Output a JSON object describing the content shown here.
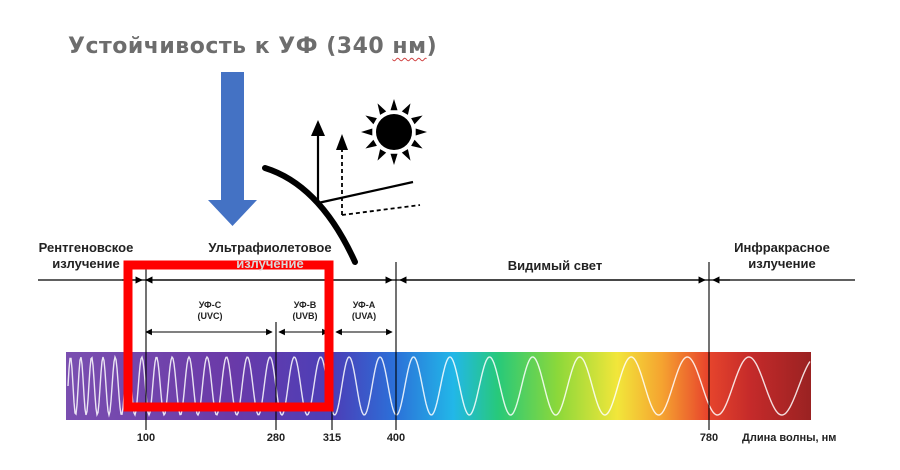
{
  "title_main": "Устойчивость к УФ (340 ",
  "title_unit": "нм",
  "title_end": ")",
  "regions": {
    "xray": [
      "Рентгеновское",
      "излучение"
    ],
    "uv": [
      "Ультрафиолетовое",
      "излучение"
    ],
    "visible": "Видимый свет",
    "ir": [
      "Инфракрасное",
      "излучение"
    ]
  },
  "subbands": {
    "uvc": [
      "УФ-С",
      "(UVC)"
    ],
    "uvb": [
      "УФ-В",
      "(UVB)"
    ],
    "uva": [
      "УФ-А",
      "(UVA)"
    ]
  },
  "ticks": [
    "100",
    "280",
    "315",
    "400",
    "780"
  ],
  "axis_label": "Длина волны, нм",
  "colors": {
    "arrow": "#4472c4",
    "highlight": "#ff0000"
  },
  "icons": [
    "sun-icon",
    "down-arrow-icon",
    "reflection-arrows-icon"
  ]
}
